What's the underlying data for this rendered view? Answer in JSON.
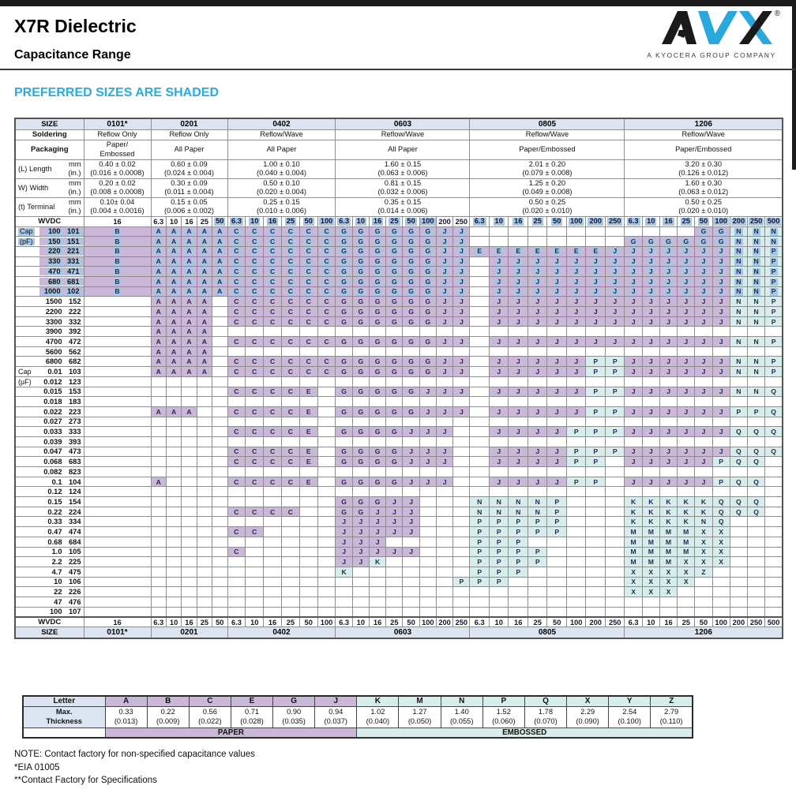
{
  "page": {
    "title": "X7R Dielectric",
    "subtitle": "Capacitance Range",
    "shaded_note": "PREFERRED SIZES ARE SHADED",
    "logo": {
      "brand": "AVX",
      "registered": "®",
      "tagline": "A KYOCERA GROUP COMPANY"
    },
    "notes": [
      "NOTE: Contact factory for non-specified capacitance values",
      "*EIA 01005",
      "**Contact Factory for Specifications"
    ]
  },
  "colors": {
    "lavender_paper": "#cbb7d8",
    "teal_embossed": "#d7edeb",
    "link_highlight": "#a6c6e6",
    "header_blue": "#dbe5f2",
    "cyan_heading": "#29abe2",
    "logo_blue": "#28a8dc"
  },
  "table": {
    "row_labels": {
      "size": "SIZE",
      "soldering": "Soldering",
      "packaging": "Packaging",
      "length": "(L) Length",
      "width": "W) Width",
      "terminal": "(t) Terminal",
      "wvdc": "WVDC",
      "unit_mm": "mm",
      "unit_in": "(in.)",
      "cap_prefix_pf": "(pF)",
      "cap_prefix_uf": "(µF)",
      "cap_word": "Cap"
    },
    "sizes": [
      {
        "name": "0101*",
        "soldering": "Reflow Only",
        "packaging": [
          "Paper/",
          "Embossed"
        ],
        "length": [
          "0.40 ± 0.02",
          "(0.016 ± 0.0008)"
        ],
        "width": [
          "0.20 ± 0.02",
          "(0.008 ± 0.0008)"
        ],
        "terminal": [
          "0.10± 0.04",
          "(0.004 ± 0.0016)"
        ],
        "wvdc": [
          "16"
        ],
        "wvdc_linked": [
          false
        ],
        "section_width": 85
      },
      {
        "name": "0201",
        "soldering": "Reflow Only",
        "packaging": [
          "All Paper"
        ],
        "length": [
          "0.60 ± 0.09",
          "(0.024 ± 0.004)"
        ],
        "width": [
          "0.30 ± 0.09",
          "(0.011 ± 0.004)"
        ],
        "terminal": [
          "0.15 ± 0.05",
          "(0.006 ± 0.002)"
        ],
        "wvdc": [
          "6.3",
          "10",
          "16",
          "25",
          "50"
        ],
        "wvdc_linked": [
          false,
          false,
          false,
          false,
          true
        ],
        "section_width": 97
      },
      {
        "name": "0402",
        "soldering": "Reflow/Wave",
        "packaging": [
          "All Paper"
        ],
        "length": [
          "1.00 ± 0.10",
          "(0.040 ± 0.004)"
        ],
        "width": [
          "0.50 ± 0.10",
          "(0.020 ± 0.004)"
        ],
        "terminal": [
          "0.25 ± 0.15",
          "(0.010 ± 0.006)"
        ],
        "wvdc": [
          "6.3",
          "10",
          "16",
          "25",
          "50",
          "100"
        ],
        "wvdc_linked": [
          true,
          true,
          true,
          true,
          true,
          true
        ],
        "section_width": 137
      },
      {
        "name": "0603",
        "soldering": "Reflow/Wave",
        "packaging": [
          "All Paper"
        ],
        "length": [
          "1.60 ± 0.15",
          "(0.063 ± 0.006)"
        ],
        "width": [
          "0.81 ± 0.15",
          "(0.032 ± 0.006)"
        ],
        "terminal": [
          "0.35 ± 0.15",
          "(0.014 ± 0.006)"
        ],
        "wvdc": [
          "6.3",
          "10",
          "16",
          "25",
          "50",
          "100",
          "200",
          "250"
        ],
        "wvdc_linked": [
          true,
          true,
          true,
          true,
          true,
          true,
          false,
          false
        ],
        "section_width": 170
      },
      {
        "name": "0805",
        "soldering": "Reflow/Wave",
        "packaging": [
          "Paper/Embossed"
        ],
        "length": [
          "2.01 ± 0.20",
          "(0.079 ± 0.008)"
        ],
        "width": [
          "1.25 ± 0.20",
          "(0.049 ± 0.008)"
        ],
        "terminal": [
          "0.50 ± 0.25",
          "(0.020 ± 0.010)"
        ],
        "wvdc": [
          "6.3",
          "10",
          "16",
          "25",
          "50",
          "100",
          "200",
          "250"
        ],
        "wvdc_linked": [
          true,
          true,
          true,
          true,
          true,
          true,
          true,
          true
        ],
        "section_width": 196
      },
      {
        "name": "1206",
        "soldering": "Reflow/Wave",
        "packaging": [
          "Paper/Embossed"
        ],
        "length": [
          "3.20 ± 0.30",
          "(0.126 ± 0.012)"
        ],
        "width": [
          "1.60 ± 0.30",
          "(0.063 ± 0.012)"
        ],
        "terminal": [
          "0.50 ± 0.25",
          "(0.020 ± 0.010)"
        ],
        "wvdc": [
          "6.3",
          "10",
          "16",
          "25",
          "50",
          "100",
          "200",
          "250",
          "500"
        ],
        "wvdc_linked": [
          true,
          true,
          true,
          true,
          true,
          true,
          true,
          true,
          true
        ],
        "section_width": 200
      }
    ],
    "cell_encoding": "one char per voltage column; '-' = empty; UPPERCASE letter = paper (lavender shaded); lowercase letter = embossed (teal shaded); displayed uppercase",
    "row_format": [
      "prefix",
      "value",
      "code",
      "preferred",
      "linked",
      "cells"
    ],
    "rows": [
      [
        "Cap",
        "100",
        "101",
        true,
        true,
        [
          "B",
          "AAAAA",
          "CCCCCC",
          "GGGGGGJJ",
          "--------",
          "----GGnnn"
        ]
      ],
      [
        "(pF)",
        "150",
        "151",
        true,
        true,
        [
          "B",
          "AAAAA",
          "CCCCCC",
          "GGGGGGJJ",
          "--------",
          "GGGGGGnnn"
        ]
      ],
      [
        "",
        "220",
        "221",
        true,
        true,
        [
          "B",
          "AAAAA",
          "CCCCCC",
          "GGGGGGJJ",
          "EEEEEEEJ",
          "JJJJJJnnp"
        ]
      ],
      [
        "",
        "330",
        "331",
        true,
        true,
        [
          "B",
          "AAAAA",
          "CCCCCC",
          "GGGGGGJJ",
          "-JJJJJJJ",
          "JJJJJJnnp"
        ]
      ],
      [
        "",
        "470",
        "471",
        true,
        true,
        [
          "B",
          "AAAAA",
          "CCCCCC",
          "GGGGGGJJ",
          "-JJJJJJJ",
          "JJJJJJnnp"
        ]
      ],
      [
        "",
        "680",
        "681",
        true,
        true,
        [
          "B",
          "AAAAA",
          "CCCCCC",
          "GGGGGGJJ",
          "-JJJJJJJ",
          "JJJJJJnnp"
        ]
      ],
      [
        "",
        "1000",
        "102",
        true,
        true,
        [
          "B",
          "AAAAA",
          "CCCCCC",
          "GGGGGGJJ",
          "-JJJJJJJ",
          "JJJJJJnnp"
        ]
      ],
      [
        "",
        "1500",
        "152",
        false,
        false,
        [
          "-",
          "AAAA-",
          "CCCCCC",
          "GGGGGGJJ",
          "-JJJJJJJ",
          "JJJJJJnnp"
        ]
      ],
      [
        "",
        "2200",
        "222",
        false,
        false,
        [
          "-",
          "AAAA-",
          "CCCCCC",
          "GGGGGGJJ",
          "-JJJJJJJ",
          "JJJJJJnnp"
        ]
      ],
      [
        "",
        "3300",
        "332",
        false,
        false,
        [
          "-",
          "AAAA-",
          "CCCCCC",
          "GGGGGGJJ",
          "-JJJJJJJ",
          "JJJJJJnnp"
        ]
      ],
      [
        "",
        "3900",
        "392",
        false,
        false,
        [
          "-",
          "AAAA-",
          "------",
          "--------",
          "--------",
          "---------"
        ]
      ],
      [
        "",
        "4700",
        "472",
        false,
        false,
        [
          "-",
          "AAAA-",
          "CCCCCC",
          "GGGGGGJJ",
          "-JJJJJJJ",
          "JJJJJJnnp"
        ]
      ],
      [
        "",
        "5600",
        "562",
        false,
        false,
        [
          "-",
          "AAAA-",
          "------",
          "--------",
          "--------",
          "---------"
        ]
      ],
      [
        "",
        "6800",
        "682",
        false,
        false,
        [
          "-",
          "AAAA-",
          "CCCCCC",
          "GGGGGGJJ",
          "-JJJJJpp",
          "JJJJJJnnp"
        ]
      ],
      [
        "Cap",
        "0.01",
        "103",
        false,
        false,
        [
          "-",
          "AAAA-",
          "CCCCCC",
          "GGGGGGJJ",
          "-JJJJJpp",
          "JJJJJJnnp"
        ]
      ],
      [
        "(µF)",
        "0.012",
        "123",
        false,
        false,
        [
          "-",
          "-----",
          "------",
          "--------",
          "--------",
          "---------"
        ]
      ],
      [
        "",
        "0.015",
        "153",
        false,
        false,
        [
          "-",
          "-----",
          "CCCCE-",
          "GGGGGJJJ",
          "-JJJJJpp",
          "JJJJJJnnq"
        ]
      ],
      [
        "",
        "0.018",
        "183",
        false,
        false,
        [
          "-",
          "-----",
          "------",
          "--------",
          "--------",
          "---------"
        ]
      ],
      [
        "",
        "0.022",
        "223",
        false,
        false,
        [
          "-",
          "AAA--",
          "CCCCE-",
          "GGGGGJJJ",
          "-JJJJJpp",
          "JJJJJJppq"
        ]
      ],
      [
        "",
        "0.027",
        "273",
        false,
        false,
        [
          "-",
          "-----",
          "------",
          "--------",
          "--------",
          "---------"
        ]
      ],
      [
        "",
        "0.033",
        "333",
        false,
        false,
        [
          "-",
          "-----",
          "CCCCE-",
          "GGGGJJJ-",
          "-JJJJppp",
          "JJJJJJqqq"
        ]
      ],
      [
        "",
        "0.039",
        "393",
        false,
        false,
        [
          "-",
          "-----",
          "------",
          "--------",
          "--------",
          "---------"
        ]
      ],
      [
        "",
        "0.047",
        "473",
        false,
        false,
        [
          "-",
          "-----",
          "CCCCE-",
          "GGGGJJJ-",
          "-JJJJppp",
          "JJJJJJqqq"
        ]
      ],
      [
        "",
        "0.068",
        "683",
        false,
        false,
        [
          "-",
          "-----",
          "CCCCE-",
          "GGGGJJJ-",
          "-JJJJpp-",
          "JJJJJpqq-"
        ]
      ],
      [
        "",
        "0.082",
        "823",
        false,
        false,
        [
          "-",
          "-----",
          "------",
          "--------",
          "--------",
          "---------"
        ]
      ],
      [
        "",
        "0.1",
        "104",
        false,
        false,
        [
          "-",
          "A----",
          "CCCCE-",
          "GGGGJJJ-",
          "-JJJJpp-",
          "JJJJJpqq-"
        ]
      ],
      [
        "",
        "0.12",
        "124",
        false,
        false,
        [
          "-",
          "-----",
          "------",
          "--------",
          "--------",
          "---------"
        ]
      ],
      [
        "",
        "0.15",
        "154",
        false,
        false,
        [
          "-",
          "-----",
          "------",
          "GGGJJ---",
          "nnnnp---",
          "kkkkkqqq-"
        ]
      ],
      [
        "",
        "0.22",
        "224",
        false,
        false,
        [
          "-",
          "-----",
          "CCCC--",
          "GGJJJ---",
          "nnnnp---",
          "kkkkkqqq-"
        ]
      ],
      [
        "",
        "0.33",
        "334",
        false,
        false,
        [
          "-",
          "-----",
          "------",
          "JJJJJ---",
          "ppppp---",
          "kkkknq---"
        ]
      ],
      [
        "",
        "0.47",
        "474",
        false,
        false,
        [
          "-",
          "-----",
          "CC----",
          "JJJJJ---",
          "ppppp---",
          "mmmmxx---"
        ]
      ],
      [
        "",
        "0.68",
        "684",
        false,
        false,
        [
          "-",
          "-----",
          "------",
          "JJJ-----",
          "ppp-----",
          "mmmmxx---"
        ]
      ],
      [
        "",
        "1.0",
        "105",
        false,
        false,
        [
          "-",
          "-----",
          "C-----",
          "JJJJJ---",
          "pppp----",
          "mmmmxx---"
        ]
      ],
      [
        "",
        "2.2",
        "225",
        false,
        false,
        [
          "-",
          "-----",
          "------",
          "JJk-----",
          "pppp----",
          "mmmxxx---"
        ]
      ],
      [
        "",
        "4.7",
        "475",
        false,
        false,
        [
          "-",
          "-----",
          "------",
          "k-------",
          "ppp-----",
          "xxxxz----"
        ]
      ],
      [
        "",
        "10",
        "106",
        false,
        false,
        [
          "-",
          "-----",
          "------",
          "-------p",
          "pp------",
          "xxxx-----"
        ]
      ],
      [
        "",
        "22",
        "226",
        false,
        false,
        [
          "-",
          "-----",
          "------",
          "--------",
          "--------",
          "xxx------"
        ]
      ],
      [
        "",
        "47",
        "476",
        false,
        false,
        [
          "-",
          "-----",
          "------",
          "--------",
          "--------",
          "---------"
        ]
      ],
      [
        "",
        "100",
        "107",
        false,
        false,
        [
          "-",
          "-----",
          "------",
          "--------",
          "--------",
          "---------"
        ]
      ]
    ]
  },
  "legend": {
    "letter_label": "Letter",
    "max_label_lines": [
      "Max.",
      "Thickness"
    ],
    "columns": [
      {
        "letter": "A",
        "mm": "0.33",
        "inch": "(0.013)",
        "type": "paper"
      },
      {
        "letter": "B",
        "mm": "0.22",
        "inch": "(0.009)",
        "type": "paper"
      },
      {
        "letter": "C",
        "mm": "0.56",
        "inch": "(0.022)",
        "type": "paper"
      },
      {
        "letter": "E",
        "mm": "0.71",
        "inch": "(0.028)",
        "type": "paper"
      },
      {
        "letter": "G",
        "mm": "0.90",
        "inch": "(0.035)",
        "type": "paper"
      },
      {
        "letter": "J",
        "mm": "0.94",
        "inch": "(0.037)",
        "type": "paper"
      },
      {
        "letter": "K",
        "mm": "1.02",
        "inch": "(0.040)",
        "type": "embossed"
      },
      {
        "letter": "M",
        "mm": "1.27",
        "inch": "(0.050)",
        "type": "embossed"
      },
      {
        "letter": "N",
        "mm": "1.40",
        "inch": "(0.055)",
        "type": "embossed"
      },
      {
        "letter": "P",
        "mm": "1.52",
        "inch": "(0.060)",
        "type": "embossed"
      },
      {
        "letter": "Q",
        "mm": "1.78",
        "inch": "(0.070)",
        "type": "embossed"
      },
      {
        "letter": "X",
        "mm": "2.29",
        "inch": "(0.090)",
        "type": "embossed"
      },
      {
        "letter": "Y",
        "mm": "2.54",
        "inch": "(0.100)",
        "type": "embossed"
      },
      {
        "letter": "Z",
        "mm": "2.79",
        "inch": "(0.110)",
        "type": "embossed"
      }
    ],
    "bands": [
      {
        "label": "PAPER",
        "span": 6,
        "type": "paper"
      },
      {
        "label": "EMBOSSED",
        "span": 8,
        "type": "embossed"
      }
    ]
  }
}
